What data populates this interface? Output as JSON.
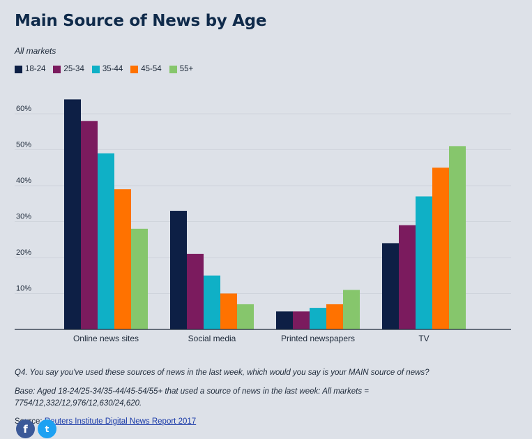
{
  "header": {
    "title": "Main Source of News by Age",
    "subtitle": "All markets"
  },
  "colors": {
    "18-24": "#0d1f45",
    "25-34": "#7b1b5e",
    "35-44": "#0fb0c6",
    "45-54": "#ff7200",
    "55+": "#86c66c",
    "gridline": "#cfd4dc",
    "axis": "#1e2a3a"
  },
  "legend": [
    {
      "label": "18-24"
    },
    {
      "label": "25-34"
    },
    {
      "label": "35-44"
    },
    {
      "label": "45-54"
    },
    {
      "label": "55+"
    }
  ],
  "chart_data": {
    "type": "bar",
    "title": "Main Source of News by Age",
    "subtitle": "All markets",
    "categories": [
      "Online news sites",
      "Social media",
      "Printed newspapers",
      "TV"
    ],
    "series": [
      {
        "name": "18-24",
        "values": [
          64,
          33,
          5,
          24
        ]
      },
      {
        "name": "25-34",
        "values": [
          58,
          21,
          5,
          29
        ]
      },
      {
        "name": "35-44",
        "values": [
          49,
          15,
          6,
          37
        ]
      },
      {
        "name": "45-54",
        "values": [
          39,
          10,
          7,
          45
        ]
      },
      {
        "name": "55+",
        "values": [
          28,
          7,
          11,
          51
        ]
      }
    ],
    "yticks": [
      10,
      20,
      30,
      40,
      50,
      60
    ],
    "ytick_labels": [
      "10%",
      "20%",
      "30%",
      "40%",
      "50%",
      "60%"
    ],
    "ylim": [
      0,
      65
    ],
    "xlabel": "",
    "ylabel": "",
    "grid": true,
    "legend_position": "top-left"
  },
  "notes": {
    "question": "Q4. You say you've used these sources of news in the last week, which would you say is your MAIN source of news?",
    "base": "Base: Aged 18-24/25-34/35-44/45-54/55+ that used a source of news in the last week: All markets = 7754/12,332/12,976/12,630/24,620.",
    "source_prefix": "Source: ",
    "source_link": "Reuters Institute Digital News Report 2017"
  },
  "social": {
    "facebook_icon": "facebook-icon",
    "facebook_glyph": "f",
    "twitter_icon": "twitter-icon",
    "twitter_glyph": "t"
  }
}
